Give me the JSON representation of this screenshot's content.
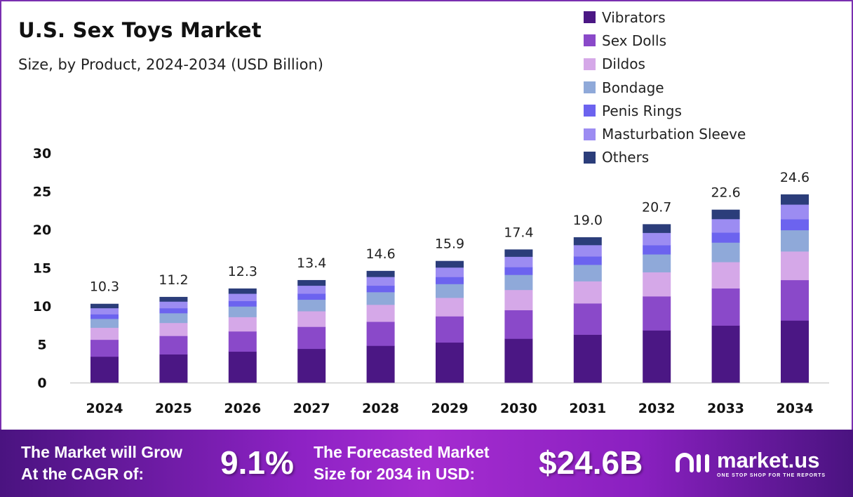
{
  "header": {
    "title": "U.S. Sex Toys Market",
    "subtitle": "Size, by Product, 2024-2034 (USD Billion)"
  },
  "chart_data": {
    "type": "bar",
    "stacked": true,
    "categories": [
      "2024",
      "2025",
      "2026",
      "2027",
      "2028",
      "2029",
      "2030",
      "2031",
      "2032",
      "2033",
      "2034"
    ],
    "totals": [
      10.3,
      11.2,
      12.3,
      13.4,
      14.6,
      15.9,
      17.4,
      19.0,
      20.7,
      22.6,
      24.6
    ],
    "total_labels": [
      "10.3",
      "11.2",
      "12.3",
      "13.4",
      "14.6",
      "15.9",
      "17.4",
      "19.0",
      "20.7",
      "22.6",
      "24.6"
    ],
    "series": [
      {
        "name": "Vibrators",
        "color": "#4b1784",
        "values": [
          3.4,
          3.7,
          4.06,
          4.42,
          4.82,
          5.25,
          5.74,
          6.27,
          6.83,
          7.46,
          8.12
        ]
      },
      {
        "name": "Sex Dolls",
        "color": "#8a49c9",
        "values": [
          2.21,
          2.41,
          2.64,
          2.88,
          3.14,
          3.42,
          3.74,
          4.09,
          4.45,
          4.86,
          5.29
        ]
      },
      {
        "name": "Dildos",
        "color": "#d5a8e8",
        "values": [
          1.57,
          1.7,
          1.87,
          2.04,
          2.22,
          2.42,
          2.64,
          2.89,
          3.15,
          3.44,
          3.74
        ]
      },
      {
        "name": "Bondage",
        "color": "#8fa9d9",
        "values": [
          1.16,
          1.27,
          1.39,
          1.51,
          1.65,
          1.8,
          1.97,
          2.15,
          2.34,
          2.55,
          2.78
        ]
      },
      {
        "name": "Penis Rings",
        "color": "#6c63ef",
        "values": [
          0.6,
          0.65,
          0.71,
          0.78,
          0.85,
          0.92,
          1.01,
          1.1,
          1.2,
          1.31,
          1.43
        ]
      },
      {
        "name": "Masturbation Sleeve",
        "color": "#9c8cf2",
        "values": [
          0.8,
          0.87,
          0.96,
          1.05,
          1.14,
          1.24,
          1.36,
          1.48,
          1.61,
          1.76,
          1.92
        ]
      },
      {
        "name": "Others",
        "color": "#2b3d7a",
        "values": [
          0.56,
          0.6,
          0.67,
          0.72,
          0.78,
          0.85,
          0.94,
          1.02,
          1.12,
          1.22,
          1.32
        ]
      }
    ],
    "yticks": [
      "0",
      "5",
      "10",
      "15",
      "20",
      "25",
      "30"
    ],
    "ylim": [
      0,
      30
    ],
    "grid": false,
    "legend": "top-right"
  },
  "footer": {
    "cagr_label_1": "The Market will Grow",
    "cagr_label_2": "At the CAGR of:",
    "cagr_value": "9.1%",
    "forecast_label_1": "The Forecasted Market",
    "forecast_label_2": "Size for 2034 in USD:",
    "forecast_value": "$24.6B",
    "brand": "market.us",
    "tagline": "ONE STOP SHOP FOR THE REPORTS"
  }
}
